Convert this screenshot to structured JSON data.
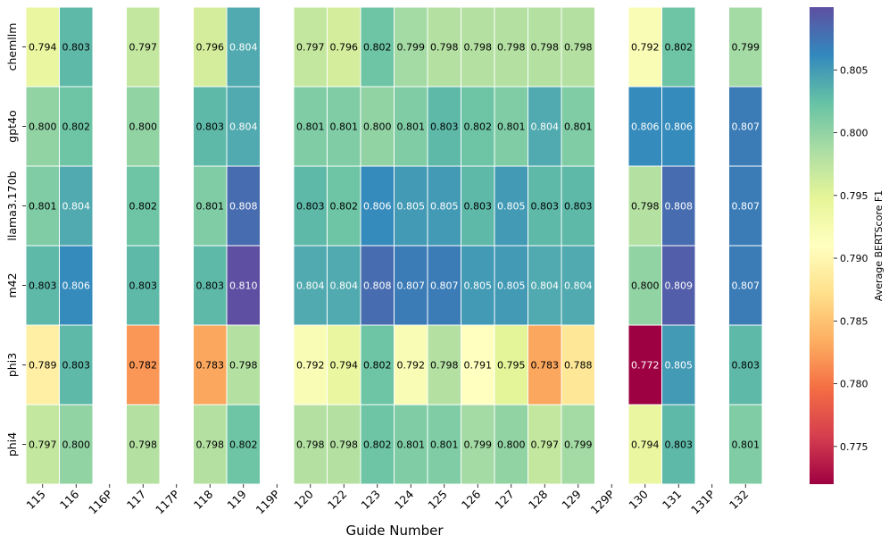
{
  "chart_data": {
    "type": "heatmap",
    "title": "",
    "xlabel": "Guide Number",
    "ylabel": "",
    "colorbar_label": "Average BERTScore F1",
    "colormap": "Spectral",
    "vmin": 0.772,
    "vmax": 0.81,
    "colorbar_ticks": [
      "0.775",
      "0.780",
      "0.785",
      "0.790",
      "0.795",
      "0.800",
      "0.805"
    ],
    "columns": [
      "115",
      "116",
      "116P",
      "117",
      "117P",
      "118",
      "119",
      "119P",
      "120",
      "122",
      "123",
      "124",
      "125",
      "126",
      "127",
      "128",
      "129",
      "129P",
      "130",
      "131",
      "131P",
      "132"
    ],
    "rows": [
      "chemllm",
      "gpt4o",
      "llama3.170b",
      "m42",
      "phi3",
      "phi4"
    ],
    "values": [
      [
        0.794,
        0.803,
        null,
        0.797,
        null,
        0.796,
        0.804,
        null,
        0.797,
        0.796,
        0.802,
        0.799,
        0.798,
        0.798,
        0.798,
        0.798,
        0.798,
        null,
        0.792,
        0.802,
        null,
        0.799
      ],
      [
        0.8,
        0.802,
        null,
        0.8,
        null,
        0.803,
        0.804,
        null,
        0.801,
        0.801,
        0.8,
        0.801,
        0.803,
        0.802,
        0.801,
        0.804,
        0.801,
        null,
        0.806,
        0.806,
        null,
        0.807
      ],
      [
        0.801,
        0.804,
        null,
        0.802,
        null,
        0.801,
        0.808,
        null,
        0.803,
        0.802,
        0.806,
        0.805,
        0.805,
        0.803,
        0.805,
        0.803,
        0.803,
        null,
        0.798,
        0.808,
        null,
        0.807
      ],
      [
        0.803,
        0.806,
        null,
        0.803,
        null,
        0.803,
        0.81,
        null,
        0.804,
        0.804,
        0.808,
        0.807,
        0.807,
        0.805,
        0.805,
        0.804,
        0.804,
        null,
        0.8,
        0.809,
        null,
        0.807
      ],
      [
        0.789,
        0.803,
        null,
        0.782,
        null,
        0.783,
        0.798,
        null,
        0.792,
        0.794,
        0.802,
        0.792,
        0.798,
        0.791,
        0.795,
        0.783,
        0.788,
        null,
        0.772,
        0.805,
        null,
        0.803
      ],
      [
        0.797,
        0.8,
        null,
        0.798,
        null,
        0.798,
        0.802,
        null,
        0.798,
        0.798,
        0.802,
        0.801,
        0.801,
        0.799,
        0.8,
        0.797,
        0.799,
        null,
        0.794,
        0.803,
        null,
        0.801
      ]
    ]
  }
}
